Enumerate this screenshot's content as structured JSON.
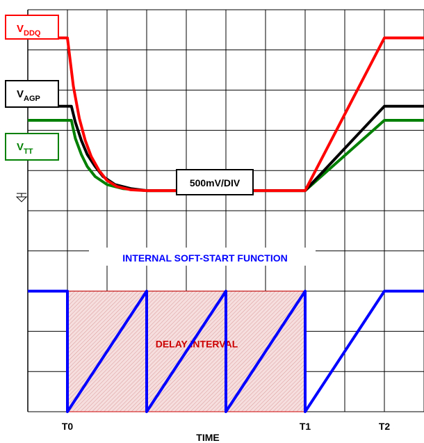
{
  "chart_data": {
    "type": "line",
    "title": "",
    "xlabel": "TIME",
    "ylabel": "",
    "grid": true,
    "x_ticks": [
      {
        "label": "T0",
        "x": 1.0
      },
      {
        "label": "T1",
        "x": 7.0
      },
      {
        "label": "T2",
        "x": 9.0
      }
    ],
    "xlim": [
      0,
      10
    ],
    "ylim": [
      0,
      10
    ],
    "scale_label": "500mV/DIV",
    "ground_marker_level": 5.5,
    "series": [
      {
        "name": "VDDQ",
        "name_main": "V",
        "name_sub": "DDQ",
        "color": "#ff0000",
        "points": [
          [
            0,
            9.3
          ],
          [
            1.0,
            9.3
          ],
          [
            1.15,
            8.1
          ],
          [
            1.3,
            7.3
          ],
          [
            1.45,
            6.75
          ],
          [
            1.6,
            6.35
          ],
          [
            1.8,
            6.0
          ],
          [
            2.0,
            5.75
          ],
          [
            2.25,
            5.6
          ],
          [
            2.6,
            5.52
          ],
          [
            3.0,
            5.5
          ],
          [
            7.0,
            5.5
          ],
          [
            9.0,
            9.3
          ],
          [
            10,
            9.3
          ]
        ]
      },
      {
        "name": "VAGP",
        "name_main": "V",
        "name_sub": "AGP",
        "color": "#000000",
        "points": [
          [
            0,
            7.6
          ],
          [
            1.1,
            7.6
          ],
          [
            1.2,
            7.2
          ],
          [
            1.35,
            6.75
          ],
          [
            1.5,
            6.4
          ],
          [
            1.7,
            6.1
          ],
          [
            1.9,
            5.85
          ],
          [
            2.2,
            5.65
          ],
          [
            2.6,
            5.55
          ],
          [
            3.0,
            5.5
          ],
          [
            7.0,
            5.5
          ],
          [
            9.0,
            7.6
          ],
          [
            10,
            7.6
          ]
        ]
      },
      {
        "name": "VTT",
        "name_main": "V",
        "name_sub": "TT",
        "color": "#008000",
        "points": [
          [
            0,
            7.25
          ],
          [
            1.1,
            7.25
          ],
          [
            1.2,
            6.8
          ],
          [
            1.35,
            6.4
          ],
          [
            1.5,
            6.1
          ],
          [
            1.7,
            5.85
          ],
          [
            2.0,
            5.65
          ],
          [
            2.4,
            5.55
          ],
          [
            3.0,
            5.5
          ],
          [
            7.0,
            5.5
          ],
          [
            9.0,
            7.25
          ],
          [
            10,
            7.25
          ]
        ]
      },
      {
        "name": "Internal soft-start",
        "color": "#0000ff",
        "points": [
          [
            0,
            3.0
          ],
          [
            1.0,
            3.0
          ],
          [
            1.0,
            0.0
          ],
          [
            3.0,
            3.0
          ],
          [
            3.0,
            0.0
          ],
          [
            5.0,
            3.0
          ],
          [
            5.0,
            0.0
          ],
          [
            7.0,
            3.0
          ],
          [
            7.0,
            0.0
          ],
          [
            9.0,
            3.0
          ],
          [
            10,
            3.0
          ]
        ]
      }
    ],
    "regions": [
      {
        "label": "DELAY INTERVAL",
        "x": [
          1.0,
          7.0
        ],
        "y": [
          0.0,
          3.0
        ],
        "color": "#cc0000"
      }
    ],
    "annotations": [
      {
        "text": "INTERNAL SOFT-START FUNCTION",
        "color": "#0000ff"
      }
    ]
  }
}
